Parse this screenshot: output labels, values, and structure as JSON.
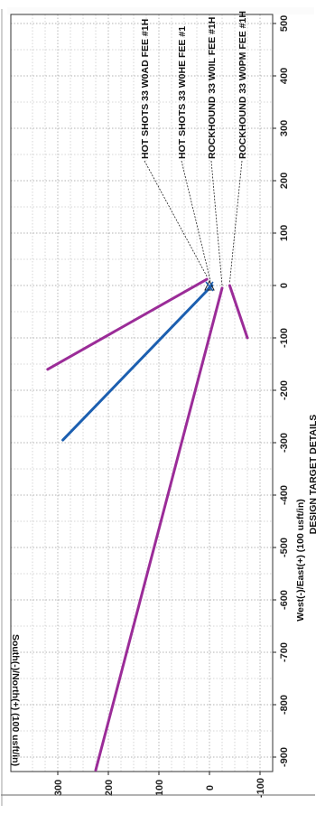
{
  "chart_data": {
    "type": "line",
    "orientation": "rotated-90-ccw",
    "xlabel": "West(-)/East(+) (100 usft/in)",
    "ylabel": "South(-)/North(+) (100 usft/in)",
    "footer_text": "DESIGN TARGET DETAILS",
    "xlim": [
      -950,
      520
    ],
    "ylim": [
      -110,
      350
    ],
    "x_ticks": [
      500,
      400,
      300,
      200,
      100,
      0,
      -100,
      -200,
      -300,
      -400,
      -500,
      -600,
      -700,
      -800,
      -900
    ],
    "y_ticks": [
      300,
      200,
      100,
      0,
      -100
    ],
    "grid": true,
    "series": [
      {
        "name": "HOT SHOTS 33 W0AD FEE #1H",
        "color": "#9b2c98",
        "x": [
          12,
          -160
        ],
        "y": [
          5,
          320
        ]
      },
      {
        "name": "HOT SHOTS 33 W0HE FEE #1",
        "color": "#1c5fb0",
        "x": [
          0,
          -295
        ],
        "y": [
          -5,
          290
        ]
      },
      {
        "name": "ROCKHOUND 33 W0IL FEE #1H",
        "color": "#9b2c98",
        "x": [
          -5,
          -925
        ],
        "y": [
          -25,
          225
        ]
      },
      {
        "name": "ROCKHOUND 33 W0PM FEE #1H",
        "color": "#9b2c98",
        "x": [
          0,
          -100
        ],
        "y": [
          -40,
          -75
        ]
      }
    ],
    "annotations": [
      {
        "text": "HOT SHOTS 33 W0AD FEE #1H",
        "x": 12,
        "y": 5
      },
      {
        "text": "HOT SHOTS 33 W0HE FEE #1",
        "x": 3,
        "y": -2
      },
      {
        "text": "ROCKHOUND 33 W0IL FEE #1H",
        "x": -5,
        "y": -25
      },
      {
        "text": "ROCKHOUND 33 W0PM FEE #1H",
        "x": 0,
        "y": -40
      }
    ]
  }
}
